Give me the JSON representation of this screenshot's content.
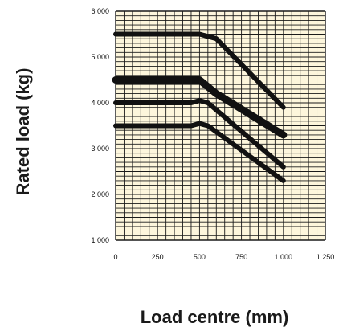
{
  "chart_data": {
    "type": "line",
    "title": "",
    "xlabel": "Load centre (mm)",
    "ylabel": "Rated load (kg)",
    "xlim": [
      0,
      1250
    ],
    "ylim": [
      1000,
      6000
    ],
    "xticks": [
      0,
      250,
      500,
      750,
      1000,
      1250
    ],
    "xtick_labels": [
      "0",
      "250",
      "500",
      "750",
      "1 000",
      "1 250"
    ],
    "yticks": [
      1000,
      2000,
      3000,
      4000,
      5000,
      6000
    ],
    "ytick_labels": [
      "1 000",
      "2 000",
      "3 000",
      "4 000",
      "5 000",
      "6 000"
    ],
    "grid": true,
    "background_color": "#fdf6dc",
    "grid_color": "#1a1a1a",
    "series_color": "#111111",
    "series": [
      {
        "x": [
          0,
          500,
          600,
          1000
        ],
        "y": [
          5500,
          5500,
          5400,
          3900
        ]
      },
      {
        "x": [
          0,
          500,
          600,
          1000
        ],
        "y": [
          4500,
          4500,
          4200,
          3300
        ]
      },
      {
        "x": [
          0,
          450,
          500,
          550,
          1000
        ],
        "y": [
          4000,
          4000,
          4050,
          4000,
          2600
        ]
      },
      {
        "x": [
          0,
          450,
          500,
          550,
          1000
        ],
        "y": [
          3500,
          3500,
          3550,
          3500,
          2300
        ]
      }
    ]
  }
}
